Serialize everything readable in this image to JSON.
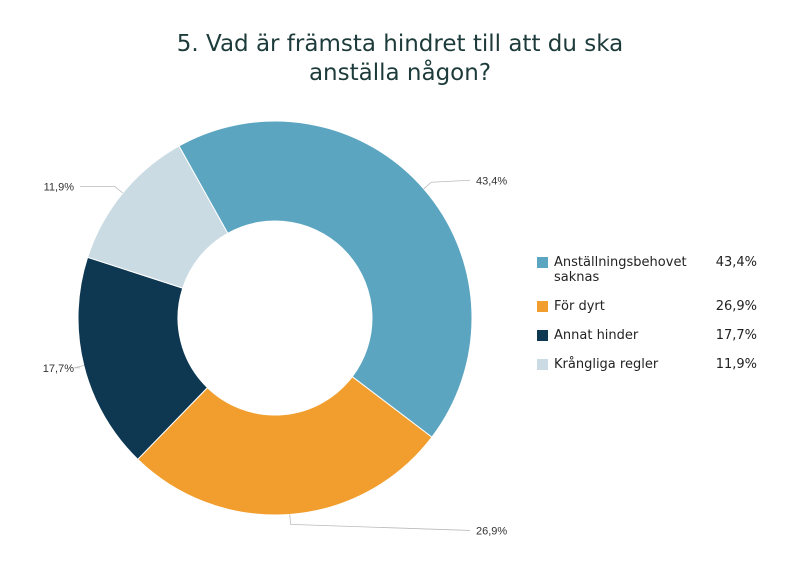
{
  "title_lines": [
    "5. Vad är främsta hindret till att du ska",
    "anställa någon?"
  ],
  "chart_data": {
    "type": "pie",
    "donut": true,
    "title": "5. Vad är främsta hindret till att du ska anställa någon?",
    "categories": [
      "Anställningsbehovet saknas",
      "För dyrt",
      "Annat hinder",
      "Krångliga regler"
    ],
    "values": [
      43.4,
      26.9,
      17.7,
      11.9
    ],
    "value_labels": [
      "43,4%",
      "26,9%",
      "17,7%",
      "11,9%"
    ],
    "colors": [
      "#5ba5c1",
      "#f29e2e",
      "#0e3852",
      "#cbdbe4"
    ],
    "legend_position": "right"
  },
  "legend": [
    {
      "label": "Anställningsbehovet saknas",
      "value": "43,4%",
      "color": "#5ba5c1"
    },
    {
      "label": "För dyrt",
      "value": "26,9%",
      "color": "#f29e2e"
    },
    {
      "label": "Annat hinder",
      "value": "17,7%",
      "color": "#0e3852"
    },
    {
      "label": "Krångliga regler",
      "value": "11,9%",
      "color": "#cbdbe4"
    }
  ]
}
